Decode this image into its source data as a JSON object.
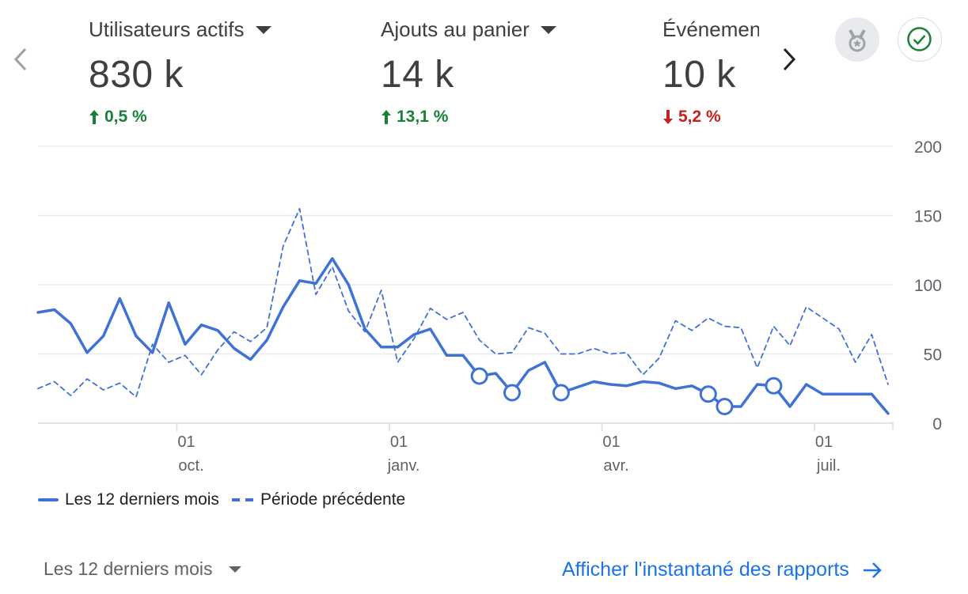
{
  "metrics": [
    {
      "label": "Utilisateurs actifs",
      "value": "830 k",
      "change": "0,5 %",
      "direction": "up"
    },
    {
      "label": "Ajouts au panier",
      "value": "14 k",
      "change": "13,1 %",
      "direction": "up"
    },
    {
      "label": "Événemen",
      "value": "10 k",
      "change": "5,2 %",
      "direction": "down"
    }
  ],
  "icons": {
    "prev": "chevron-left-icon",
    "next": "chevron-right-icon",
    "badge": "medal-icon",
    "check": "check-circle-icon"
  },
  "colors": {
    "accent": "#4072d6",
    "up": "#188038",
    "down": "#c5221f",
    "link": "#1a73e8"
  },
  "chart_data": {
    "type": "line",
    "y_ticks": [
      "200",
      "150",
      "100",
      "50",
      "0"
    ],
    "ylim": [
      0,
      200
    ],
    "x_ticks": [
      {
        "day": "01",
        "month": "oct.",
        "index": 8.5
      },
      {
        "day": "01",
        "month": "janv.",
        "index": 21.5
      },
      {
        "day": "01",
        "month": "avr.",
        "index": 34.5
      },
      {
        "day": "01",
        "month": "juil.",
        "index": 47.5
      }
    ],
    "series": [
      {
        "name": "Les 12 derniers mois",
        "style": "solid",
        "values": [
          80,
          82,
          72,
          51,
          63,
          90,
          63,
          51,
          87,
          57,
          71,
          67,
          54,
          46,
          60,
          84,
          103,
          101,
          119,
          100,
          68,
          55,
          55,
          64,
          68,
          49,
          49,
          34,
          36,
          22,
          38,
          44,
          22,
          26,
          30,
          28,
          27,
          30,
          29,
          25,
          27,
          21,
          12,
          12,
          28,
          27,
          12,
          28,
          21,
          21,
          21,
          21,
          7
        ],
        "markers": [
          27,
          29,
          32,
          41,
          42,
          45
        ]
      },
      {
        "name": "Période précédente",
        "style": "dashed",
        "values": [
          25,
          30,
          20,
          32,
          24,
          29,
          19,
          57,
          44,
          49,
          35,
          53,
          66,
          59,
          69,
          128,
          155,
          93,
          113,
          81,
          66,
          96,
          44,
          61,
          83,
          75,
          80,
          60,
          50,
          51,
          69,
          65,
          50,
          50,
          54,
          50,
          51,
          35,
          47,
          74,
          67,
          76,
          70,
          69,
          40,
          70,
          56,
          84,
          76,
          68,
          44,
          64,
          28
        ]
      }
    ],
    "legend": [
      "Les 12 derniers mois",
      "Période précédente"
    ],
    "legend_position": "bottom-left",
    "grid": true
  },
  "footer": {
    "period_label": "Les 12 derniers mois",
    "report_link": "Afficher l'instantané des rapports"
  }
}
